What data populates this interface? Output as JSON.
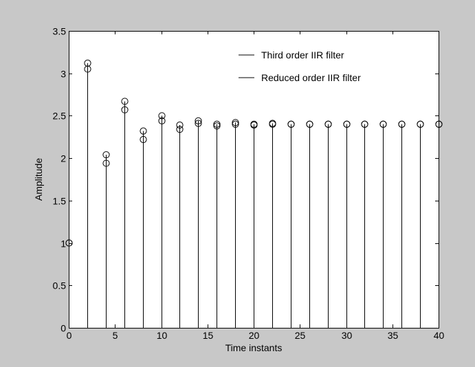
{
  "chart_data": {
    "type": "scatter",
    "plot_style": "stem",
    "xlabel": "Time instants",
    "ylabel": "Amplitude",
    "xlim": [
      0,
      40
    ],
    "ylim": [
      0,
      3.5
    ],
    "xticks": [
      "0",
      "5",
      "10",
      "15",
      "20",
      "25",
      "30",
      "35",
      "40"
    ],
    "yticks": [
      "0",
      "0.5",
      "1",
      "1.5",
      "2",
      "2.5",
      "3",
      "3.5"
    ],
    "grid": false,
    "legend": "top-right",
    "marker": "circle",
    "colors": {
      "figure_bg": "#c8c8c8",
      "axes_bg": "#ffffff",
      "ink": "#000000"
    },
    "series": [
      {
        "name": "Third order IIR filter",
        "x": [
          0,
          2,
          4,
          6,
          8,
          10,
          12,
          14,
          16,
          18,
          20,
          22,
          24,
          26,
          28,
          30,
          32,
          34,
          36,
          38,
          40
        ],
        "values": [
          1.0,
          3.05,
          1.94,
          2.57,
          2.22,
          2.44,
          2.34,
          2.41,
          2.38,
          2.4,
          2.39,
          2.4,
          2.4,
          2.4,
          2.4,
          2.4,
          2.4,
          2.4,
          2.4,
          2.4,
          2.4
        ]
      },
      {
        "name": "Reduced order IIR filter",
        "x": [
          0,
          2,
          4,
          6,
          8,
          10,
          12,
          14,
          16,
          18,
          20,
          22,
          24,
          26,
          28,
          30,
          32,
          34,
          36,
          38,
          40
        ],
        "values": [
          1.0,
          3.12,
          2.04,
          2.67,
          2.32,
          2.5,
          2.39,
          2.44,
          2.4,
          2.42,
          2.4,
          2.41,
          2.4,
          2.4,
          2.4,
          2.4,
          2.4,
          2.4,
          2.4,
          2.4,
          2.4
        ]
      }
    ]
  }
}
